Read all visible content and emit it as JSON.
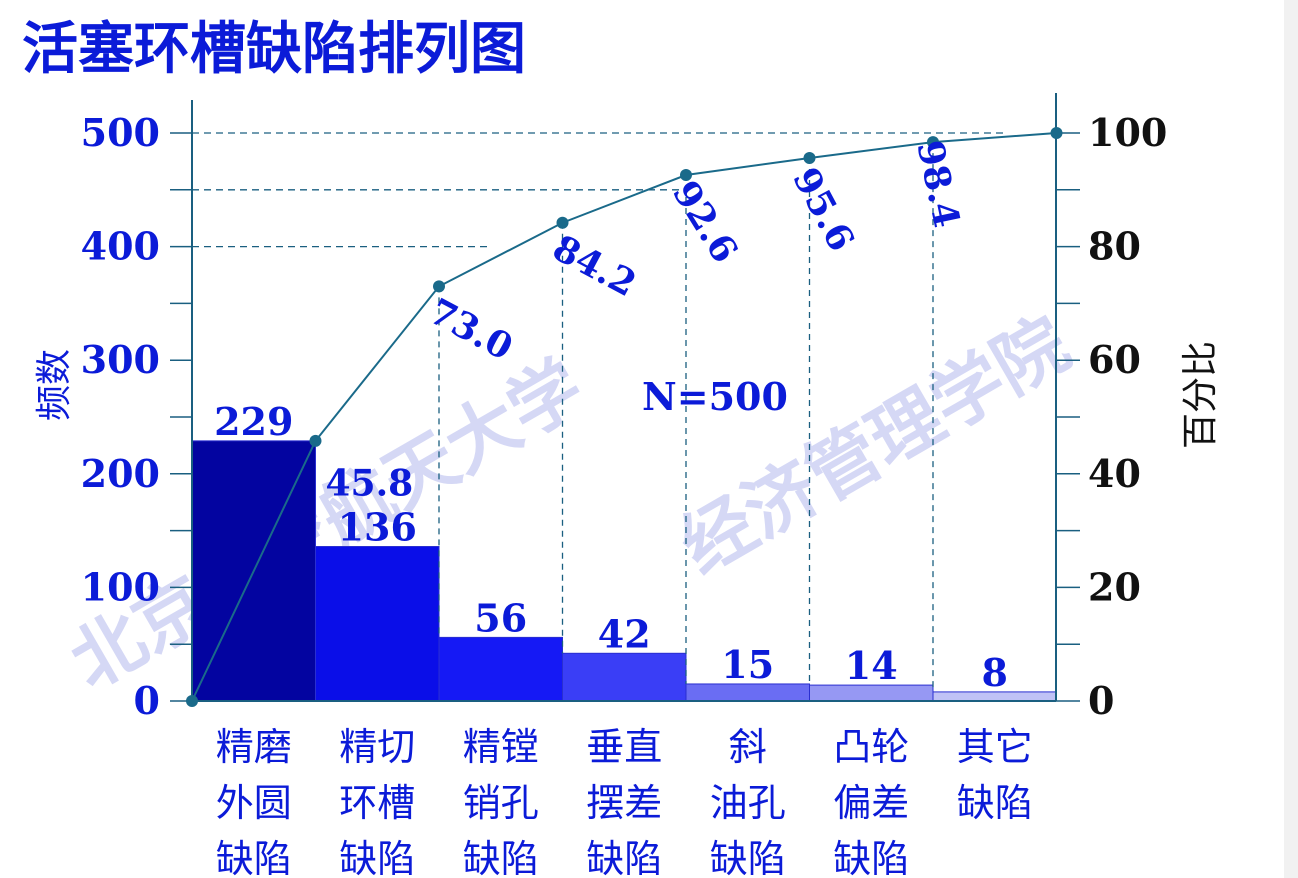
{
  "chart_data": {
    "type": "bar",
    "title": "活塞环槽缺陷排列图",
    "categories": [
      [
        "精磨",
        "外圆",
        "缺陷"
      ],
      [
        "精切",
        "环槽",
        "缺陷"
      ],
      [
        "精镗",
        "销孔",
        "缺陷"
      ],
      [
        "垂直",
        "摆差",
        "缺陷"
      ],
      [
        "斜",
        "油孔",
        "缺陷"
      ],
      [
        "凸轮",
        "偏差",
        "缺陷"
      ],
      [
        "其它",
        "缺陷"
      ]
    ],
    "values": [
      229,
      136,
      56,
      42,
      15,
      14,
      8
    ],
    "value_labels": [
      "229",
      "136",
      "56",
      "42",
      "15",
      "14",
      "8"
    ],
    "bar_colors": [
      "#0304a0",
      "#0a0ee8",
      "#1519f5",
      "#3a3ef6",
      "#6a6df3",
      "#9698f3",
      "#c0c2f6"
    ],
    "cumulative_percent": {
      "x": [
        0,
        1,
        2,
        3,
        4,
        5,
        6,
        7
      ],
      "values": [
        0,
        45.8,
        73.0,
        84.2,
        92.6,
        95.6,
        98.4,
        100
      ],
      "labels": [
        "",
        "45.8",
        "73.0",
        "84.2",
        "92.6",
        "95.6",
        "98.4",
        ""
      ],
      "color": "#1a6a8a"
    },
    "ylabel": "频数",
    "ylabel_right": "百分比",
    "ylim": [
      0,
      500
    ],
    "yticks": [
      0,
      100,
      200,
      300,
      400,
      500
    ],
    "ylim_right": [
      0,
      100
    ],
    "yticks_right": [
      0,
      20,
      40,
      60,
      80,
      100
    ],
    "annotation": "N=500",
    "grid": false,
    "watermark": [
      "北京航空航天大学",
      "经济管理学院"
    ]
  }
}
